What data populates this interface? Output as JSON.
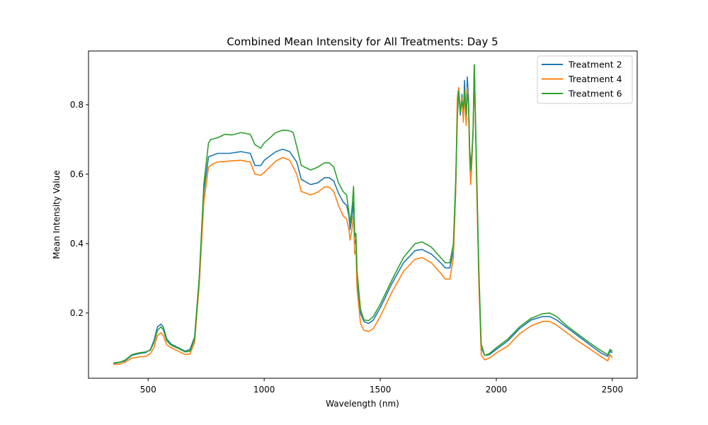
{
  "chart_data": {
    "type": "line",
    "title": "Combined Mean Intensity for All Treatments: Day 5",
    "xlabel": "Wavelength (nm)",
    "ylabel": "Mean Intensity Value",
    "xlim": [
      243,
      2607
    ],
    "ylim": [
      0.012,
      0.955
    ],
    "xticks": [
      500,
      1000,
      1500,
      2000,
      2500
    ],
    "xtick_labels": [
      "500",
      "1000",
      "1500",
      "2000",
      "2500"
    ],
    "yticks": [
      0.2,
      0.4,
      0.6,
      0.8
    ],
    "ytick_labels": [
      "0.2",
      "0.4",
      "0.6",
      "0.8"
    ],
    "grid": false,
    "legend_position": "top-right",
    "series": [
      {
        "name": "Treatment 2",
        "color": "#1f77b4",
        "points": [
          [
            350,
            0.055
          ],
          [
            380,
            0.058
          ],
          [
            400,
            0.062
          ],
          [
            430,
            0.078
          ],
          [
            460,
            0.083
          ],
          [
            490,
            0.086
          ],
          [
            510,
            0.095
          ],
          [
            525,
            0.12
          ],
          [
            540,
            0.16
          ],
          [
            555,
            0.168
          ],
          [
            565,
            0.16
          ],
          [
            580,
            0.125
          ],
          [
            600,
            0.11
          ],
          [
            630,
            0.1
          ],
          [
            660,
            0.09
          ],
          [
            680,
            0.095
          ],
          [
            700,
            0.13
          ],
          [
            720,
            0.3
          ],
          [
            740,
            0.55
          ],
          [
            760,
            0.65
          ],
          [
            780,
            0.655
          ],
          [
            800,
            0.66
          ],
          [
            850,
            0.66
          ],
          [
            900,
            0.665
          ],
          [
            940,
            0.66
          ],
          [
            960,
            0.625
          ],
          [
            985,
            0.625
          ],
          [
            1000,
            0.64
          ],
          [
            1050,
            0.665
          ],
          [
            1080,
            0.672
          ],
          [
            1110,
            0.665
          ],
          [
            1140,
            0.635
          ],
          [
            1160,
            0.585
          ],
          [
            1200,
            0.57
          ],
          [
            1230,
            0.575
          ],
          [
            1260,
            0.59
          ],
          [
            1280,
            0.59
          ],
          [
            1300,
            0.58
          ],
          [
            1320,
            0.545
          ],
          [
            1340,
            0.52
          ],
          [
            1355,
            0.51
          ],
          [
            1365,
            0.48
          ],
          [
            1370,
            0.44
          ],
          [
            1378,
            0.475
          ],
          [
            1385,
            0.52
          ],
          [
            1390,
            0.4
          ],
          [
            1395,
            0.41
          ],
          [
            1400,
            0.3
          ],
          [
            1415,
            0.2
          ],
          [
            1430,
            0.175
          ],
          [
            1450,
            0.17
          ],
          [
            1470,
            0.18
          ],
          [
            1500,
            0.215
          ],
          [
            1550,
            0.285
          ],
          [
            1600,
            0.345
          ],
          [
            1650,
            0.38
          ],
          [
            1680,
            0.383
          ],
          [
            1720,
            0.37
          ],
          [
            1760,
            0.345
          ],
          [
            1780,
            0.33
          ],
          [
            1800,
            0.33
          ],
          [
            1815,
            0.38
          ],
          [
            1825,
            0.55
          ],
          [
            1832,
            0.78
          ],
          [
            1838,
            0.84
          ],
          [
            1845,
            0.77
          ],
          [
            1852,
            0.83
          ],
          [
            1858,
            0.76
          ],
          [
            1863,
            0.87
          ],
          [
            1870,
            0.75
          ],
          [
            1875,
            0.88
          ],
          [
            1880,
            0.82
          ],
          [
            1885,
            0.67
          ],
          [
            1890,
            0.63
          ],
          [
            1895,
            0.66
          ],
          [
            1900,
            0.72
          ],
          [
            1905,
            0.915
          ],
          [
            1915,
            0.6
          ],
          [
            1925,
            0.3
          ],
          [
            1935,
            0.1
          ],
          [
            1950,
            0.078
          ],
          [
            1970,
            0.08
          ],
          [
            2000,
            0.095
          ],
          [
            2050,
            0.12
          ],
          [
            2100,
            0.155
          ],
          [
            2150,
            0.18
          ],
          [
            2200,
            0.19
          ],
          [
            2230,
            0.19
          ],
          [
            2260,
            0.18
          ],
          [
            2300,
            0.16
          ],
          [
            2350,
            0.135
          ],
          [
            2400,
            0.11
          ],
          [
            2450,
            0.085
          ],
          [
            2480,
            0.075
          ],
          [
            2490,
            0.09
          ],
          [
            2500,
            0.085
          ]
        ]
      },
      {
        "name": "Treatment 4",
        "color": "#ff7f0e",
        "points": [
          [
            350,
            0.052
          ],
          [
            380,
            0.053
          ],
          [
            400,
            0.058
          ],
          [
            430,
            0.07
          ],
          [
            460,
            0.073
          ],
          [
            490,
            0.075
          ],
          [
            510,
            0.083
          ],
          [
            525,
            0.1
          ],
          [
            540,
            0.135
          ],
          [
            555,
            0.143
          ],
          [
            565,
            0.135
          ],
          [
            580,
            0.108
          ],
          [
            600,
            0.1
          ],
          [
            630,
            0.09
          ],
          [
            660,
            0.08
          ],
          [
            680,
            0.082
          ],
          [
            700,
            0.115
          ],
          [
            720,
            0.28
          ],
          [
            740,
            0.52
          ],
          [
            760,
            0.62
          ],
          [
            780,
            0.63
          ],
          [
            800,
            0.635
          ],
          [
            850,
            0.638
          ],
          [
            900,
            0.64
          ],
          [
            940,
            0.635
          ],
          [
            960,
            0.6
          ],
          [
            985,
            0.597
          ],
          [
            1000,
            0.605
          ],
          [
            1050,
            0.638
          ],
          [
            1080,
            0.648
          ],
          [
            1110,
            0.64
          ],
          [
            1140,
            0.6
          ],
          [
            1160,
            0.55
          ],
          [
            1200,
            0.54
          ],
          [
            1230,
            0.548
          ],
          [
            1260,
            0.563
          ],
          [
            1280,
            0.563
          ],
          [
            1300,
            0.55
          ],
          [
            1320,
            0.51
          ],
          [
            1340,
            0.48
          ],
          [
            1355,
            0.47
          ],
          [
            1365,
            0.44
          ],
          [
            1370,
            0.41
          ],
          [
            1378,
            0.44
          ],
          [
            1385,
            0.48
          ],
          [
            1390,
            0.37
          ],
          [
            1395,
            0.38
          ],
          [
            1400,
            0.27
          ],
          [
            1415,
            0.17
          ],
          [
            1430,
            0.15
          ],
          [
            1450,
            0.147
          ],
          [
            1470,
            0.155
          ],
          [
            1500,
            0.19
          ],
          [
            1550,
            0.26
          ],
          [
            1600,
            0.32
          ],
          [
            1650,
            0.355
          ],
          [
            1680,
            0.36
          ],
          [
            1720,
            0.345
          ],
          [
            1760,
            0.315
          ],
          [
            1780,
            0.298
          ],
          [
            1800,
            0.298
          ],
          [
            1815,
            0.36
          ],
          [
            1825,
            0.55
          ],
          [
            1832,
            0.82
          ],
          [
            1838,
            0.85
          ],
          [
            1845,
            0.78
          ],
          [
            1852,
            0.82
          ],
          [
            1858,
            0.75
          ],
          [
            1863,
            0.84
          ],
          [
            1870,
            0.74
          ],
          [
            1875,
            0.85
          ],
          [
            1880,
            0.8
          ],
          [
            1885,
            0.64
          ],
          [
            1890,
            0.57
          ],
          [
            1895,
            0.64
          ],
          [
            1900,
            0.72
          ],
          [
            1905,
            0.91
          ],
          [
            1915,
            0.58
          ],
          [
            1925,
            0.28
          ],
          [
            1935,
            0.08
          ],
          [
            1950,
            0.065
          ],
          [
            1970,
            0.07
          ],
          [
            2000,
            0.085
          ],
          [
            2050,
            0.105
          ],
          [
            2100,
            0.14
          ],
          [
            2150,
            0.163
          ],
          [
            2200,
            0.176
          ],
          [
            2230,
            0.176
          ],
          [
            2260,
            0.165
          ],
          [
            2300,
            0.145
          ],
          [
            2350,
            0.12
          ],
          [
            2400,
            0.098
          ],
          [
            2450,
            0.075
          ],
          [
            2480,
            0.062
          ],
          [
            2490,
            0.08
          ],
          [
            2500,
            0.07
          ]
        ]
      },
      {
        "name": "Treatment 6",
        "color": "#2ca02c",
        "points": [
          [
            350,
            0.056
          ],
          [
            380,
            0.059
          ],
          [
            400,
            0.064
          ],
          [
            430,
            0.08
          ],
          [
            460,
            0.085
          ],
          [
            490,
            0.088
          ],
          [
            510,
            0.093
          ],
          [
            525,
            0.115
          ],
          [
            540,
            0.15
          ],
          [
            555,
            0.16
          ],
          [
            565,
            0.152
          ],
          [
            580,
            0.12
          ],
          [
            600,
            0.107
          ],
          [
            630,
            0.098
          ],
          [
            660,
            0.088
          ],
          [
            680,
            0.09
          ],
          [
            700,
            0.125
          ],
          [
            720,
            0.3
          ],
          [
            740,
            0.57
          ],
          [
            760,
            0.69
          ],
          [
            770,
            0.7
          ],
          [
            800,
            0.705
          ],
          [
            830,
            0.715
          ],
          [
            860,
            0.713
          ],
          [
            900,
            0.72
          ],
          [
            940,
            0.715
          ],
          [
            960,
            0.685
          ],
          [
            985,
            0.675
          ],
          [
            1000,
            0.69
          ],
          [
            1050,
            0.72
          ],
          [
            1080,
            0.727
          ],
          [
            1110,
            0.725
          ],
          [
            1125,
            0.72
          ],
          [
            1140,
            0.68
          ],
          [
            1160,
            0.625
          ],
          [
            1200,
            0.612
          ],
          [
            1230,
            0.62
          ],
          [
            1260,
            0.633
          ],
          [
            1280,
            0.633
          ],
          [
            1300,
            0.62
          ],
          [
            1320,
            0.575
          ],
          [
            1340,
            0.55
          ],
          [
            1355,
            0.54
          ],
          [
            1365,
            0.49
          ],
          [
            1370,
            0.46
          ],
          [
            1378,
            0.5
          ],
          [
            1385,
            0.565
          ],
          [
            1390,
            0.42
          ],
          [
            1395,
            0.43
          ],
          [
            1400,
            0.32
          ],
          [
            1415,
            0.21
          ],
          [
            1430,
            0.18
          ],
          [
            1450,
            0.178
          ],
          [
            1470,
            0.19
          ],
          [
            1500,
            0.225
          ],
          [
            1550,
            0.295
          ],
          [
            1600,
            0.36
          ],
          [
            1650,
            0.4
          ],
          [
            1680,
            0.405
          ],
          [
            1720,
            0.39
          ],
          [
            1760,
            0.36
          ],
          [
            1780,
            0.345
          ],
          [
            1800,
            0.345
          ],
          [
            1815,
            0.4
          ],
          [
            1825,
            0.58
          ],
          [
            1832,
            0.76
          ],
          [
            1838,
            0.84
          ],
          [
            1845,
            0.78
          ],
          [
            1852,
            0.81
          ],
          [
            1858,
            0.79
          ],
          [
            1863,
            0.84
          ],
          [
            1870,
            0.77
          ],
          [
            1875,
            0.83
          ],
          [
            1880,
            0.81
          ],
          [
            1885,
            0.68
          ],
          [
            1890,
            0.61
          ],
          [
            1895,
            0.66
          ],
          [
            1900,
            0.73
          ],
          [
            1905,
            0.915
          ],
          [
            1915,
            0.62
          ],
          [
            1925,
            0.32
          ],
          [
            1935,
            0.11
          ],
          [
            1950,
            0.078
          ],
          [
            1970,
            0.083
          ],
          [
            2000,
            0.1
          ],
          [
            2050,
            0.125
          ],
          [
            2100,
            0.16
          ],
          [
            2150,
            0.185
          ],
          [
            2200,
            0.198
          ],
          [
            2230,
            0.2
          ],
          [
            2260,
            0.19
          ],
          [
            2300,
            0.165
          ],
          [
            2350,
            0.14
          ],
          [
            2400,
            0.115
          ],
          [
            2450,
            0.092
          ],
          [
            2480,
            0.08
          ],
          [
            2490,
            0.095
          ],
          [
            2500,
            0.09
          ]
        ]
      }
    ]
  }
}
